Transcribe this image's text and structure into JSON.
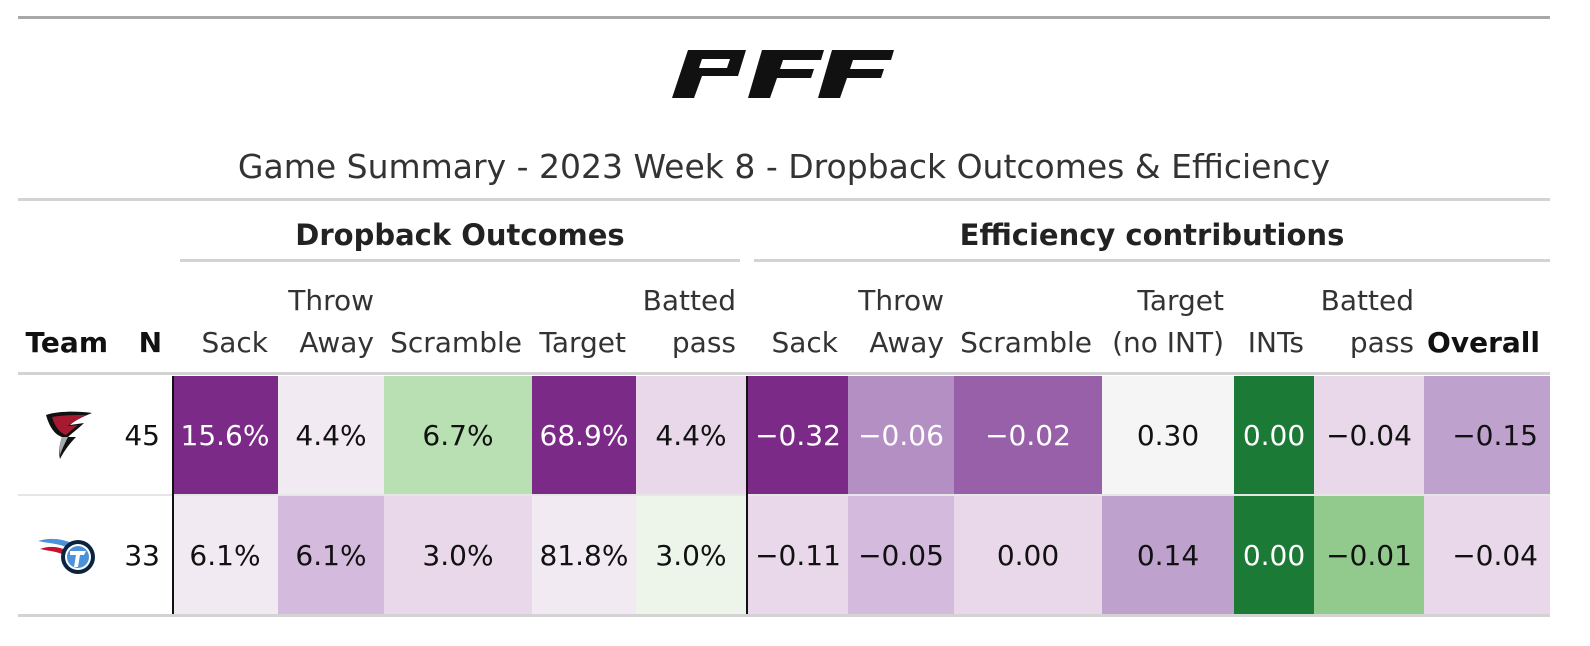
{
  "brand": {
    "logo_text": "PFF"
  },
  "title": "Game Summary - 2023 Week 8 - Dropback Outcomes & Efficiency",
  "spanners": {
    "outcomes": "Dropback Outcomes",
    "efficiency": "Efficiency contributions"
  },
  "columns": {
    "team": "Team",
    "n": "N",
    "out_sack": "Sack",
    "out_throw_1": "Throw",
    "out_throw_2": "Away",
    "out_scramble": "Scramble",
    "out_target": "Target",
    "out_batted_1": "Batted",
    "out_batted_2": "pass",
    "eff_sack": "Sack",
    "eff_throw_1": "Throw",
    "eff_throw_2": "Away",
    "eff_scramble": "Scramble",
    "eff_target_1": "Target",
    "eff_target_2": "(no INT)",
    "eff_ints": "INTs",
    "eff_batted_1": "Batted",
    "eff_batted_2": "pass",
    "eff_overall": "Overall"
  },
  "rows": [
    {
      "team_icon": "falcons-logo-icon",
      "n": "45",
      "out_sack": "15.6%",
      "out_throw": "4.4%",
      "out_scramble": "6.7%",
      "out_target": "68.9%",
      "out_batted": "4.4%",
      "eff_sack": "−0.32",
      "eff_throw": "−0.06",
      "eff_scramble": "−0.02",
      "eff_target": "0.30",
      "eff_ints": "0.00",
      "eff_batted": "−0.04",
      "eff_overall": "−0.15"
    },
    {
      "team_icon": "titans-logo-icon",
      "n": "33",
      "out_sack": "6.1%",
      "out_throw": "6.1%",
      "out_scramble": "3.0%",
      "out_target": "81.8%",
      "out_batted": "3.0%",
      "eff_sack": "−0.11",
      "eff_throw": "−0.05",
      "eff_scramble": "0.00",
      "eff_target": "0.14",
      "eff_ints": "0.00",
      "eff_batted": "−0.01",
      "eff_overall": "−0.04"
    }
  ],
  "colors": {
    "purple_dark": "#7b2a87",
    "purple_mid": "#9860a8",
    "purple_light": "#b38fc4",
    "purple_lighter": "#bfa1cd",
    "purple_pale": "#d4bbdd",
    "purple_paler": "#e8d8ea",
    "purple_faint": "#f2eaf2",
    "green_dark": "#1c7a37",
    "green_mid": "#92c98c",
    "green_light": "#b8e0b2",
    "green_faint": "#edf5ea",
    "neutral": "#f5f5f5"
  }
}
